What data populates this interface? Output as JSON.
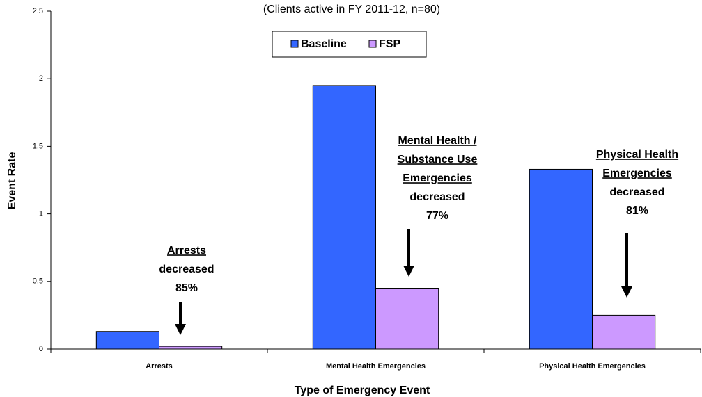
{
  "chart_data": {
    "type": "bar",
    "subtitle": "(Clients active in FY 2011-12, n=80)",
    "xlabel": "Type of Emergency Event",
    "ylabel": "Event Rate",
    "categories": [
      "Arrests",
      "Mental Health Emergencies",
      "Physical Health Emergencies"
    ],
    "series": [
      {
        "name": "Baseline",
        "color": "#3366ff",
        "values": [
          0.13,
          1.95,
          1.33
        ]
      },
      {
        "name": "FSP",
        "color": "#cc99ff",
        "values": [
          0.02,
          0.45,
          0.25
        ]
      }
    ],
    "ylim": [
      0,
      2.5
    ],
    "yticks": [
      0,
      0.5,
      1,
      1.5,
      2,
      2.5
    ],
    "grid": false,
    "legend": "top",
    "annotations": [
      {
        "heading": [
          "Arrests"
        ],
        "lines": [
          "decreased",
          "85%"
        ]
      },
      {
        "heading": [
          "Mental Health /",
          "Substance Use",
          "Emergencies"
        ],
        "lines": [
          "decreased",
          "77%"
        ]
      },
      {
        "heading": [
          "Physical Health",
          "Emergencies"
        ],
        "lines": [
          "decreased",
          "81%"
        ]
      }
    ]
  }
}
